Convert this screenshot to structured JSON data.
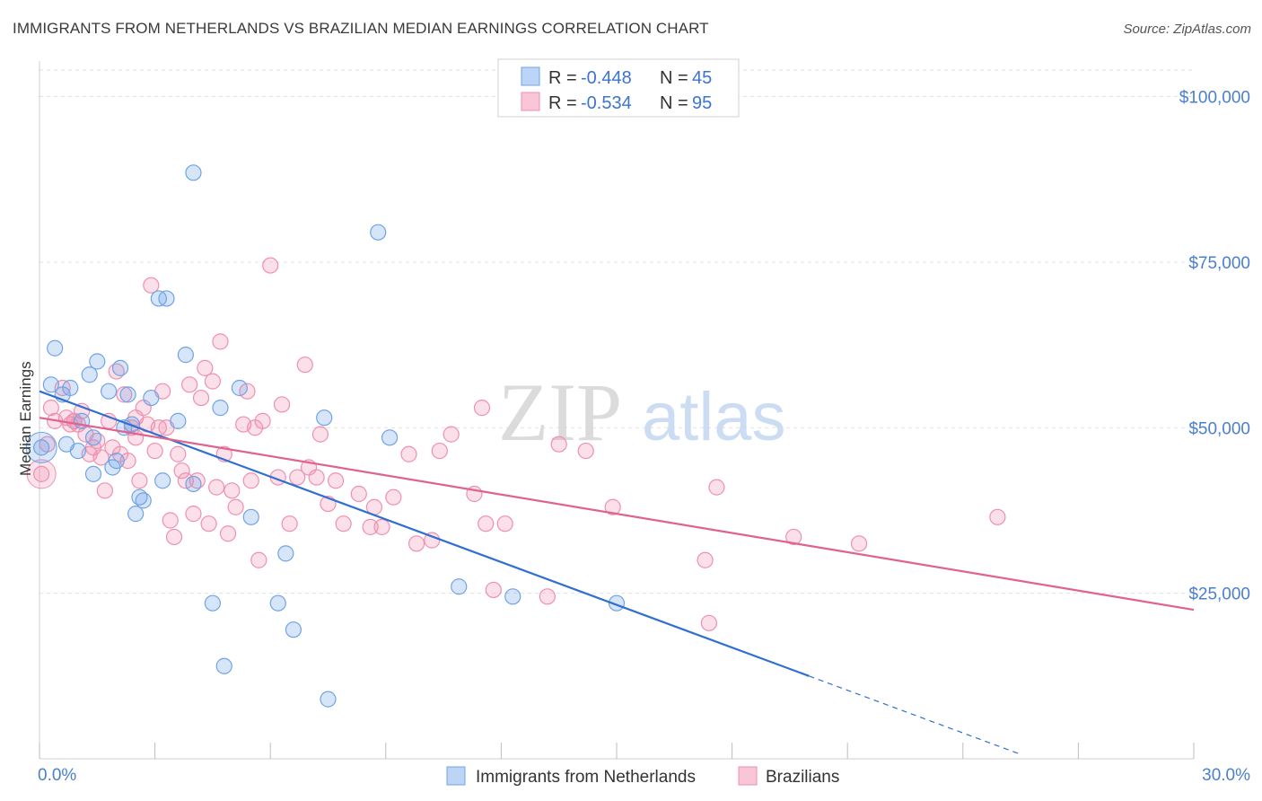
{
  "title": "IMMIGRANTS FROM NETHERLANDS VS BRAZILIAN MEDIAN EARNINGS CORRELATION CHART",
  "source": "Source: ZipAtlas.com",
  "watermark": {
    "zip": "ZIP",
    "atlas": "atlas"
  },
  "colors": {
    "blue": "#6fa3e6",
    "blue_line": "#2f6fd0",
    "pink": "#ef8fb0",
    "pink_line": "#e0628f",
    "tick_text": "#4a7fd0"
  },
  "chart_data": {
    "type": "scatter",
    "title": "IMMIGRANTS FROM NETHERLANDS VS BRAZILIAN MEDIAN EARNINGS CORRELATION CHART",
    "xlabel": "",
    "ylabel": "Median Earnings",
    "xlim": [
      0,
      30
    ],
    "ylim": [
      0,
      104000
    ],
    "x_tick_labels": [
      "0.0%",
      "30.0%"
    ],
    "y_ticks": [
      25000,
      50000,
      75000,
      100000
    ],
    "y_tick_labels": [
      "$25,000",
      "$50,000",
      "$75,000",
      "$100,000"
    ],
    "grid": "horizontal dashed",
    "legend_position": "top-center",
    "legend": [
      {
        "r_label": "R =",
        "r_value": "-0.448",
        "n_label": "N =",
        "n_value": "45"
      },
      {
        "r_label": "R =",
        "r_value": "-0.534",
        "n_label": "N =",
        "n_value": "95"
      }
    ],
    "series": [
      {
        "name": "Immigrants from Netherlands",
        "color": "#6fa3e6",
        "trend": {
          "x_start": 0.0,
          "y_start": 55500,
          "x_end": 20.0,
          "y_end": 12500,
          "dashed_to_x": 25.5
        },
        "points": [
          [
            0.05,
            47000
          ],
          [
            0.3,
            56500
          ],
          [
            0.6,
            55000
          ],
          [
            0.4,
            62000
          ],
          [
            0.7,
            47500
          ],
          [
            1.1,
            51000
          ],
          [
            1.0,
            46500
          ],
          [
            1.3,
            58000
          ],
          [
            1.4,
            48500
          ],
          [
            1.4,
            43000
          ],
          [
            1.8,
            55500
          ],
          [
            1.9,
            44000
          ],
          [
            2.1,
            59000
          ],
          [
            2.0,
            45000
          ],
          [
            2.2,
            50000
          ],
          [
            2.3,
            55000
          ],
          [
            2.5,
            37000
          ],
          [
            2.6,
            39500
          ],
          [
            2.7,
            39000
          ],
          [
            2.9,
            54500
          ],
          [
            3.1,
            69500
          ],
          [
            3.3,
            69500
          ],
          [
            3.2,
            42000
          ],
          [
            3.6,
            51000
          ],
          [
            3.8,
            61000
          ],
          [
            4.0,
            88500
          ],
          [
            4.5,
            23500
          ],
          [
            4.7,
            53000
          ],
          [
            4.8,
            14000
          ],
          [
            5.2,
            56000
          ],
          [
            5.5,
            36500
          ],
          [
            6.2,
            23500
          ],
          [
            6.4,
            31000
          ],
          [
            6.6,
            19500
          ],
          [
            7.4,
            51500
          ],
          [
            7.5,
            9000
          ],
          [
            8.8,
            79500
          ],
          [
            9.1,
            48500
          ],
          [
            10.9,
            26000
          ],
          [
            12.3,
            24500
          ],
          [
            15.0,
            23500
          ],
          [
            0.8,
            56000
          ],
          [
            1.5,
            60000
          ],
          [
            2.4,
            50500
          ],
          [
            4.0,
            41500
          ]
        ]
      },
      {
        "name": "Brazilians",
        "color": "#ef8fb0",
        "trend": {
          "x_start": 0.0,
          "y_start": 51500,
          "x_end": 30.0,
          "y_end": 22500
        },
        "points": [
          [
            0.05,
            43000
          ],
          [
            0.2,
            47500
          ],
          [
            0.3,
            53000
          ],
          [
            0.4,
            51000
          ],
          [
            0.6,
            56000
          ],
          [
            0.7,
            51500
          ],
          [
            0.8,
            50500
          ],
          [
            0.9,
            51000
          ],
          [
            1.0,
            50500
          ],
          [
            1.1,
            52500
          ],
          [
            1.2,
            49000
          ],
          [
            1.4,
            47000
          ],
          [
            1.5,
            48000
          ],
          [
            1.6,
            45500
          ],
          [
            1.8,
            51000
          ],
          [
            1.9,
            47000
          ],
          [
            2.0,
            58500
          ],
          [
            2.1,
            46000
          ],
          [
            2.2,
            55000
          ],
          [
            2.3,
            45000
          ],
          [
            2.4,
            50000
          ],
          [
            2.5,
            51500
          ],
          [
            2.6,
            42000
          ],
          [
            2.7,
            53000
          ],
          [
            2.8,
            50500
          ],
          [
            2.9,
            71500
          ],
          [
            3.0,
            46500
          ],
          [
            3.1,
            50000
          ],
          [
            3.2,
            55500
          ],
          [
            3.3,
            50000
          ],
          [
            3.4,
            36000
          ],
          [
            3.5,
            33500
          ],
          [
            3.6,
            46000
          ],
          [
            3.7,
            43500
          ],
          [
            3.8,
            42000
          ],
          [
            3.9,
            56500
          ],
          [
            4.0,
            37000
          ],
          [
            4.1,
            42000
          ],
          [
            4.2,
            54500
          ],
          [
            4.3,
            59000
          ],
          [
            4.4,
            35500
          ],
          [
            4.5,
            57000
          ],
          [
            4.6,
            41000
          ],
          [
            4.7,
            63000
          ],
          [
            4.8,
            46000
          ],
          [
            4.9,
            34000
          ],
          [
            5.0,
            40500
          ],
          [
            5.1,
            38000
          ],
          [
            5.3,
            50500
          ],
          [
            5.4,
            55500
          ],
          [
            5.5,
            42000
          ],
          [
            5.6,
            50000
          ],
          [
            5.7,
            30000
          ],
          [
            5.8,
            51000
          ],
          [
            6.0,
            74500
          ],
          [
            6.2,
            42500
          ],
          [
            6.3,
            53500
          ],
          [
            6.5,
            35500
          ],
          [
            6.7,
            42500
          ],
          [
            6.9,
            59500
          ],
          [
            7.0,
            44000
          ],
          [
            7.2,
            42500
          ],
          [
            7.3,
            49000
          ],
          [
            7.5,
            38500
          ],
          [
            7.7,
            42000
          ],
          [
            7.9,
            35500
          ],
          [
            8.3,
            40000
          ],
          [
            8.6,
            35000
          ],
          [
            8.7,
            38000
          ],
          [
            8.9,
            35000
          ],
          [
            9.2,
            39500
          ],
          [
            9.6,
            46000
          ],
          [
            9.8,
            32500
          ],
          [
            10.2,
            33000
          ],
          [
            10.4,
            46500
          ],
          [
            10.7,
            49000
          ],
          [
            11.3,
            40000
          ],
          [
            11.5,
            53000
          ],
          [
            11.6,
            35500
          ],
          [
            11.8,
            25500
          ],
          [
            12.1,
            35500
          ],
          [
            13.2,
            24500
          ],
          [
            13.5,
            47500
          ],
          [
            14.2,
            46500
          ],
          [
            14.9,
            38000
          ],
          [
            17.3,
            30000
          ],
          [
            17.4,
            20500
          ],
          [
            17.6,
            41000
          ],
          [
            19.6,
            33500
          ],
          [
            21.3,
            32500
          ],
          [
            24.9,
            36500
          ],
          [
            0.9,
            51000
          ],
          [
            1.3,
            46000
          ],
          [
            1.7,
            40500
          ],
          [
            2.5,
            48500
          ]
        ]
      }
    ]
  },
  "bottom_legend": [
    "Immigrants from Netherlands",
    "Brazilians"
  ]
}
